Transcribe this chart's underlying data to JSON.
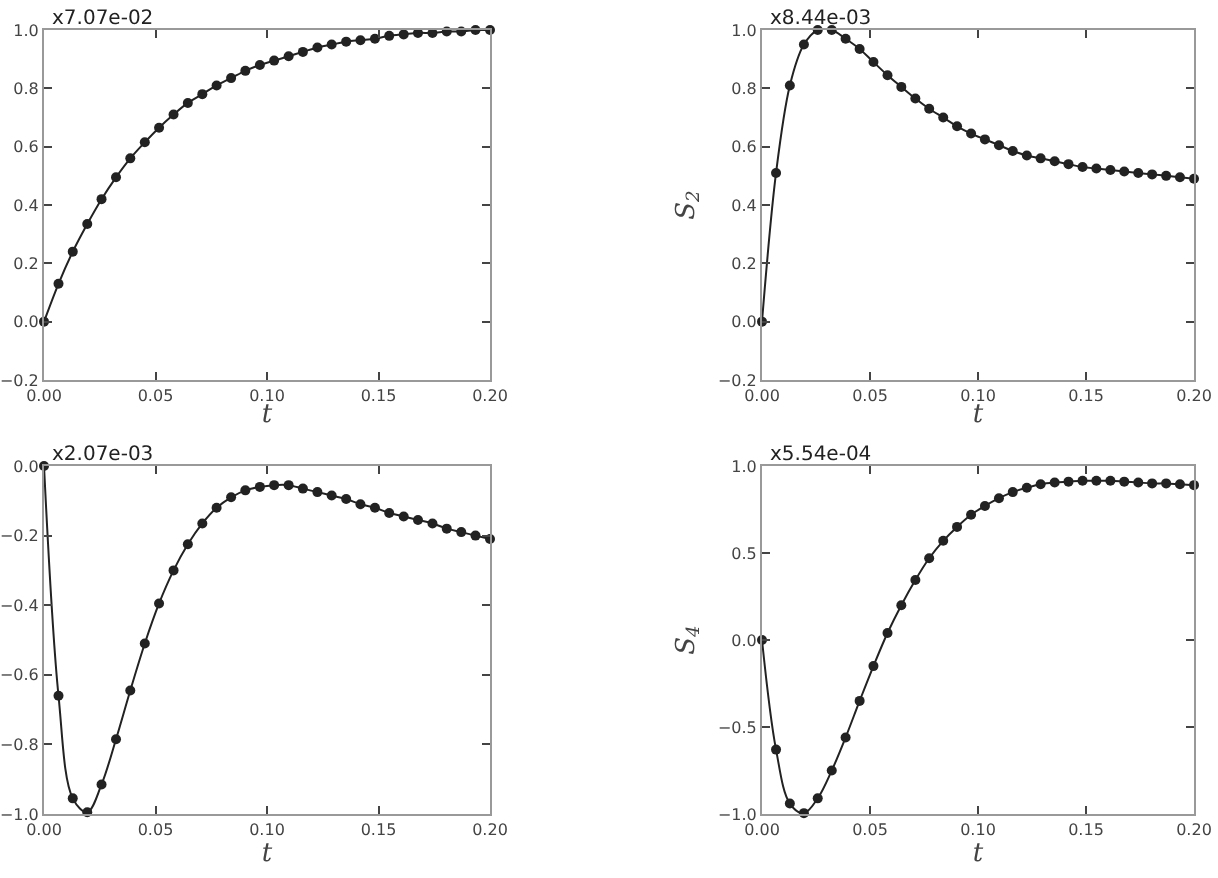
{
  "chart_data": [
    {
      "type": "line",
      "title": "x7.07e-02",
      "xlabel": "t",
      "x": [
        0,
        0.0065,
        0.0129,
        0.0194,
        0.0258,
        0.0323,
        0.0387,
        0.0452,
        0.0516,
        0.0581,
        0.0645,
        0.071,
        0.0774,
        0.0839,
        0.0903,
        0.0968,
        0.1032,
        0.1097,
        0.1161,
        0.1226,
        0.129,
        0.1355,
        0.1419,
        0.1484,
        0.1548,
        0.1613,
        0.1677,
        0.1742,
        0.1806,
        0.1871,
        0.1935,
        0.2
      ],
      "series": [
        {
          "color": "#222222",
          "values": [
            0,
            0.13,
            0.24,
            0.335,
            0.42,
            0.495,
            0.56,
            0.615,
            0.665,
            0.71,
            0.75,
            0.78,
            0.81,
            0.835,
            0.86,
            0.88,
            0.895,
            0.91,
            0.925,
            0.94,
            0.95,
            0.96,
            0.965,
            0.97,
            0.98,
            0.985,
            0.99,
            0.99,
            0.995,
            0.995,
            1.0,
            1.0
          ]
        }
      ],
      "xlim": [
        0,
        0.2
      ],
      "xticks": [
        {
          "value": 0,
          "label": "0.00"
        },
        {
          "value": 0.05,
          "label": "0.05"
        },
        {
          "value": 0.1,
          "label": "0.10"
        },
        {
          "value": 0.15,
          "label": "0.15"
        },
        {
          "value": 0.2,
          "label": "0.20"
        }
      ],
      "ylim": [
        -0.2,
        1
      ],
      "yticks": [
        {
          "value": -0.2,
          "label": "−0.2"
        },
        {
          "value": 0,
          "label": "0.0"
        },
        {
          "value": 0.2,
          "label": "0.2"
        },
        {
          "value": 0.4,
          "label": "0.4"
        },
        {
          "value": 0.6,
          "label": "0.6"
        },
        {
          "value": 0.8,
          "label": "0.8"
        },
        {
          "value": 1,
          "label": "1.0"
        }
      ],
      "marker": "circle",
      "line_style": "solid",
      "grid": false
    },
    {
      "type": "line",
      "title": "x8.44e-03",
      "xlabel": "t",
      "ylabel": "S$_{2}$",
      "x": [
        0,
        0.0065,
        0.0129,
        0.0194,
        0.0258,
        0.0323,
        0.0387,
        0.0452,
        0.0516,
        0.0581,
        0.0645,
        0.071,
        0.0774,
        0.0839,
        0.0903,
        0.0968,
        0.1032,
        0.1097,
        0.1161,
        0.1226,
        0.129,
        0.1355,
        0.1419,
        0.1484,
        0.1548,
        0.1613,
        0.1677,
        0.1742,
        0.1806,
        0.1871,
        0.1935,
        0.2
      ],
      "series": [
        {
          "color": "#222222",
          "values": [
            0,
            0.51,
            0.81,
            0.95,
            1.0,
            1.0,
            0.97,
            0.935,
            0.89,
            0.845,
            0.805,
            0.765,
            0.73,
            0.7,
            0.67,
            0.645,
            0.625,
            0.605,
            0.585,
            0.57,
            0.56,
            0.55,
            0.54,
            0.53,
            0.525,
            0.52,
            0.515,
            0.51,
            0.505,
            0.5,
            0.495,
            0.49
          ]
        }
      ],
      "xlim": [
        0,
        0.2
      ],
      "xticks": [
        {
          "value": 0,
          "label": "0.00"
        },
        {
          "value": 0.05,
          "label": "0.05"
        },
        {
          "value": 0.1,
          "label": "0.10"
        },
        {
          "value": 0.15,
          "label": "0.15"
        },
        {
          "value": 0.2,
          "label": "0.20"
        }
      ],
      "ylim": [
        -0.2,
        1
      ],
      "yticks": [
        {
          "value": -0.2,
          "label": "−0.2"
        },
        {
          "value": 0,
          "label": "0.0"
        },
        {
          "value": 0.2,
          "label": "0.2"
        },
        {
          "value": 0.4,
          "label": "0.4"
        },
        {
          "value": 0.6,
          "label": "0.6"
        },
        {
          "value": 0.8,
          "label": "0.8"
        },
        {
          "value": 1,
          "label": "1.0"
        }
      ],
      "marker": "circle",
      "line_style": "solid",
      "grid": false
    },
    {
      "type": "line",
      "title": "x2.07e-03",
      "xlabel": "t",
      "x": [
        0,
        0.0065,
        0.0129,
        0.0194,
        0.0258,
        0.0323,
        0.0387,
        0.0452,
        0.0516,
        0.0581,
        0.0645,
        0.071,
        0.0774,
        0.0839,
        0.0903,
        0.0968,
        0.1032,
        0.1097,
        0.1161,
        0.1226,
        0.129,
        0.1355,
        0.1419,
        0.1484,
        0.1548,
        0.1613,
        0.1677,
        0.1742,
        0.1806,
        0.1871,
        0.1935,
        0.2
      ],
      "series": [
        {
          "color": "#222222",
          "values": [
            0,
            -0.66,
            -0.955,
            -0.995,
            -0.915,
            -0.785,
            -0.645,
            -0.51,
            -0.395,
            -0.3,
            -0.225,
            -0.165,
            -0.12,
            -0.09,
            -0.07,
            -0.06,
            -0.055,
            -0.055,
            -0.065,
            -0.075,
            -0.085,
            -0.095,
            -0.11,
            -0.12,
            -0.135,
            -0.145,
            -0.155,
            -0.165,
            -0.18,
            -0.19,
            -0.2,
            -0.21
          ]
        }
      ],
      "xlim": [
        0,
        0.2
      ],
      "xticks": [
        {
          "value": 0,
          "label": "0.00"
        },
        {
          "value": 0.05,
          "label": "0.05"
        },
        {
          "value": 0.1,
          "label": "0.10"
        },
        {
          "value": 0.15,
          "label": "0.15"
        },
        {
          "value": 0.2,
          "label": "0.20"
        }
      ],
      "ylim": [
        -1,
        0
      ],
      "yticks": [
        {
          "value": -1,
          "label": "−1.0"
        },
        {
          "value": -0.8,
          "label": "−0.8"
        },
        {
          "value": -0.6,
          "label": "−0.6"
        },
        {
          "value": -0.4,
          "label": "−0.4"
        },
        {
          "value": -0.2,
          "label": "−0.2"
        },
        {
          "value": 0,
          "label": "0.0"
        }
      ],
      "marker": "circle",
      "line_style": "solid",
      "grid": false
    },
    {
      "type": "line",
      "title": "x5.54e-04",
      "xlabel": "t",
      "ylabel": "S$_{4}$",
      "x": [
        0,
        0.0065,
        0.0129,
        0.0194,
        0.0258,
        0.0323,
        0.0387,
        0.0452,
        0.0516,
        0.0581,
        0.0645,
        0.071,
        0.0774,
        0.0839,
        0.0903,
        0.0968,
        0.1032,
        0.1097,
        0.1161,
        0.1226,
        0.129,
        0.1355,
        0.1419,
        0.1484,
        0.1548,
        0.1613,
        0.1677,
        0.1742,
        0.1806,
        0.1871,
        0.1935,
        0.2
      ],
      "series": [
        {
          "color": "#222222",
          "values": [
            0,
            -0.63,
            -0.94,
            -0.995,
            -0.91,
            -0.75,
            -0.56,
            -0.35,
            -0.15,
            0.04,
            0.2,
            0.345,
            0.47,
            0.57,
            0.65,
            0.72,
            0.77,
            0.815,
            0.85,
            0.875,
            0.895,
            0.905,
            0.91,
            0.915,
            0.915,
            0.915,
            0.91,
            0.905,
            0.9,
            0.9,
            0.895,
            0.89
          ]
        }
      ],
      "xlim": [
        0,
        0.2
      ],
      "xticks": [
        {
          "value": 0,
          "label": "0.00"
        },
        {
          "value": 0.05,
          "label": "0.05"
        },
        {
          "value": 0.1,
          "label": "0.10"
        },
        {
          "value": 0.15,
          "label": "0.15"
        },
        {
          "value": 0.2,
          "label": "0.20"
        }
      ],
      "ylim": [
        -1,
        1
      ],
      "yticks": [
        {
          "value": -1,
          "label": "−1.0"
        },
        {
          "value": -0.5,
          "label": "−0.5"
        },
        {
          "value": 0,
          "label": "0.0"
        },
        {
          "value": 0.5,
          "label": "0.5"
        },
        {
          "value": 1,
          "label": "1.0"
        }
      ],
      "marker": "circle",
      "line_style": "solid",
      "grid": false
    }
  ]
}
